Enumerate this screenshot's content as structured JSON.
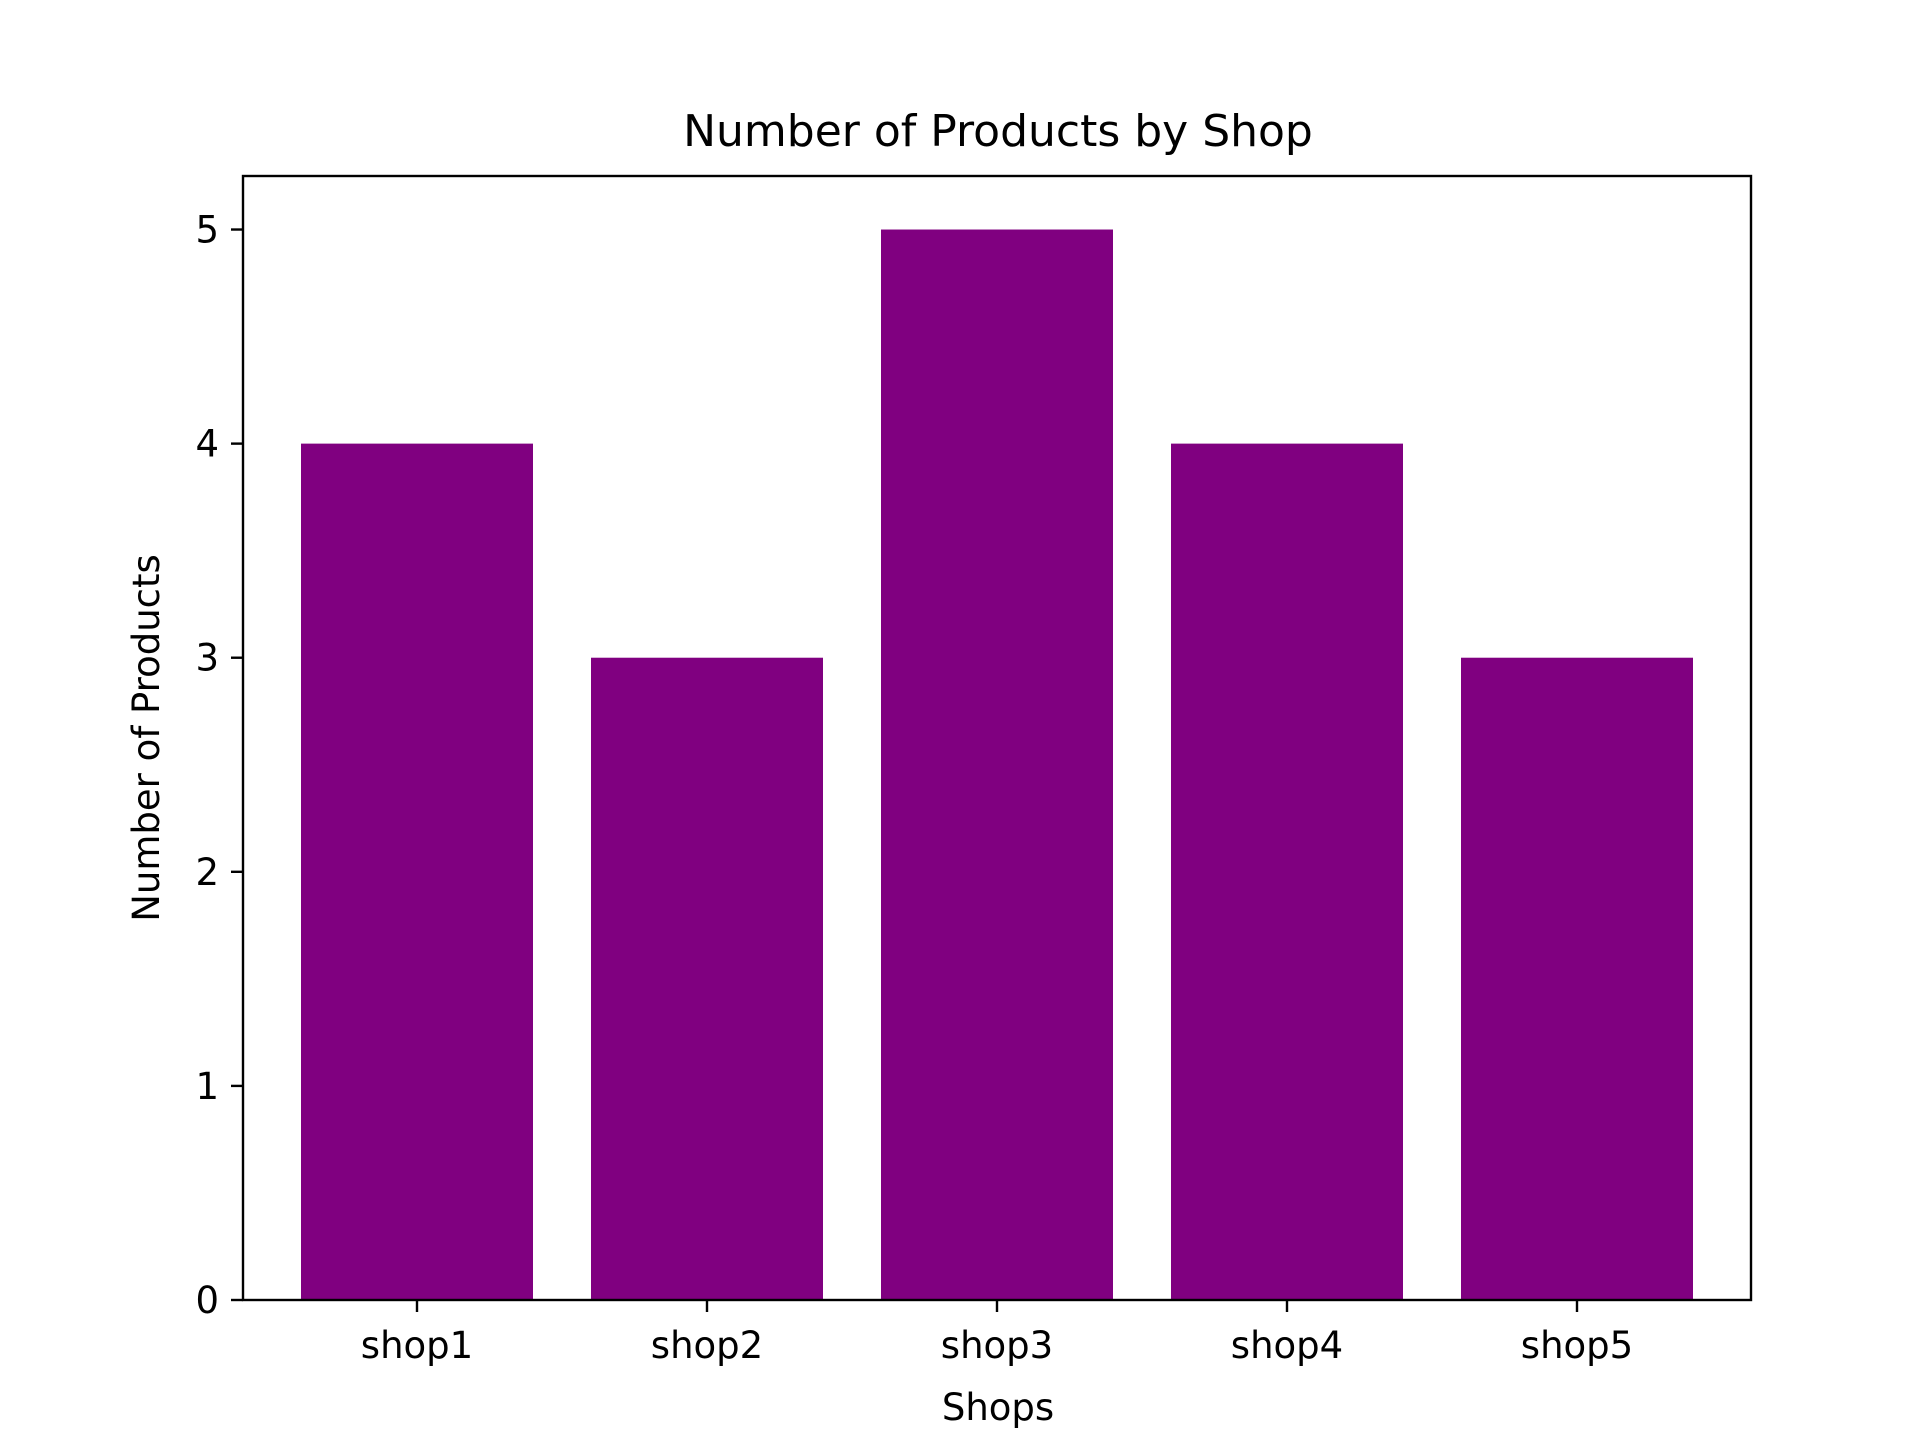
{
  "chart_data": {
    "type": "bar",
    "title": "Number of Products by Shop",
    "xlabel": "Shops",
    "ylabel": "Number of Products",
    "categories": [
      "shop1",
      "shop2",
      "shop3",
      "shop4",
      "shop5"
    ],
    "values": [
      4,
      3,
      5,
      4,
      3
    ],
    "ylim": [
      0,
      5.25
    ],
    "yticks": [
      0,
      1,
      2,
      3,
      4,
      5
    ],
    "grid": false,
    "legend": "none",
    "bar_color": "#800080"
  }
}
